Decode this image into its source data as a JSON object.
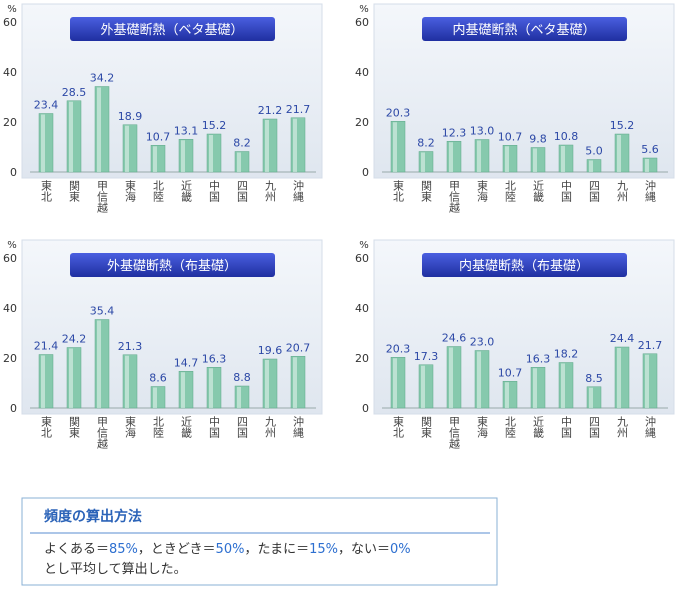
{
  "chart_data": [
    {
      "type": "bar",
      "title": "外基礎断熱（ベタ基礎）",
      "y_label": "%",
      "color": "#86c9ad",
      "categories": [
        "東北",
        "関東",
        "甲信越",
        "東海",
        "北陸",
        "近畿",
        "中国",
        "四国",
        "九州",
        "沖縄"
      ],
      "values": [
        23.4,
        28.5,
        34.2,
        18.9,
        10.7,
        13.1,
        15.2,
        8.2,
        21.2,
        21.7
      ],
      "value_labels": [
        "23.4",
        "28.5",
        "34.2",
        "18.9",
        "10.7",
        "13.1",
        "15.2",
        "8.2",
        "21.2",
        "21.7"
      ],
      "ylim": [
        0,
        60
      ],
      "yticks": [
        0,
        20,
        40,
        60
      ]
    },
    {
      "type": "bar",
      "title": "内基礎断熱（ベタ基礎）",
      "y_label": "%",
      "color": "#86c9ad",
      "categories": [
        "東北",
        "関東",
        "甲信越",
        "東海",
        "北陸",
        "近畿",
        "中国",
        "四国",
        "九州",
        "沖縄"
      ],
      "values": [
        20.3,
        8.2,
        12.3,
        13.0,
        10.7,
        9.8,
        10.8,
        5.0,
        15.2,
        5.6
      ],
      "value_labels": [
        "20.3",
        "8.2",
        "12.3",
        "13.0",
        "10.7",
        "9.8",
        "10.8",
        "5.0",
        "15.2",
        "5.6"
      ],
      "ylim": [
        0,
        60
      ],
      "yticks": [
        0,
        20,
        40,
        60
      ]
    },
    {
      "type": "bar",
      "title": "外基礎断熱（布基礎）",
      "y_label": "%",
      "color": "#86c9ad",
      "categories": [
        "東北",
        "関東",
        "甲信越",
        "東海",
        "北陸",
        "近畿",
        "中国",
        "四国",
        "九州",
        "沖縄"
      ],
      "values": [
        21.4,
        24.2,
        35.4,
        21.3,
        8.6,
        14.7,
        16.3,
        8.8,
        19.6,
        20.7
      ],
      "value_labels": [
        "21.4",
        "24.2",
        "35.4",
        "21.3",
        "8.6",
        "14.7",
        "16.3",
        "8.8",
        "19.6",
        "20.7"
      ],
      "ylim": [
        0,
        60
      ],
      "yticks": [
        0,
        20,
        40,
        60
      ]
    },
    {
      "type": "bar",
      "title": "内基礎断熱（布基礎）",
      "y_label": "%",
      "color": "#86c9ad",
      "categories": [
        "東北",
        "関東",
        "甲信越",
        "東海",
        "北陸",
        "近畿",
        "中国",
        "四国",
        "九州",
        "沖縄"
      ],
      "values": [
        20.3,
        17.3,
        24.6,
        23.0,
        10.7,
        16.3,
        18.2,
        8.5,
        24.4,
        21.7
      ],
      "value_labels": [
        "20.3",
        "17.3",
        "24.6",
        "23.0",
        "10.7",
        "16.3",
        "18.2",
        "8.5",
        "24.4",
        "21.7"
      ],
      "ylim": [
        0,
        60
      ],
      "yticks": [
        0,
        20,
        40,
        60
      ]
    }
  ],
  "note": {
    "title": "頻度の算出方法",
    "line1": [
      "よくある＝",
      "85%",
      "，ときどき＝",
      "50%",
      "，たまに＝",
      "15%",
      "，ない＝",
      "0%"
    ],
    "line2": "とし平均して算出した。"
  }
}
